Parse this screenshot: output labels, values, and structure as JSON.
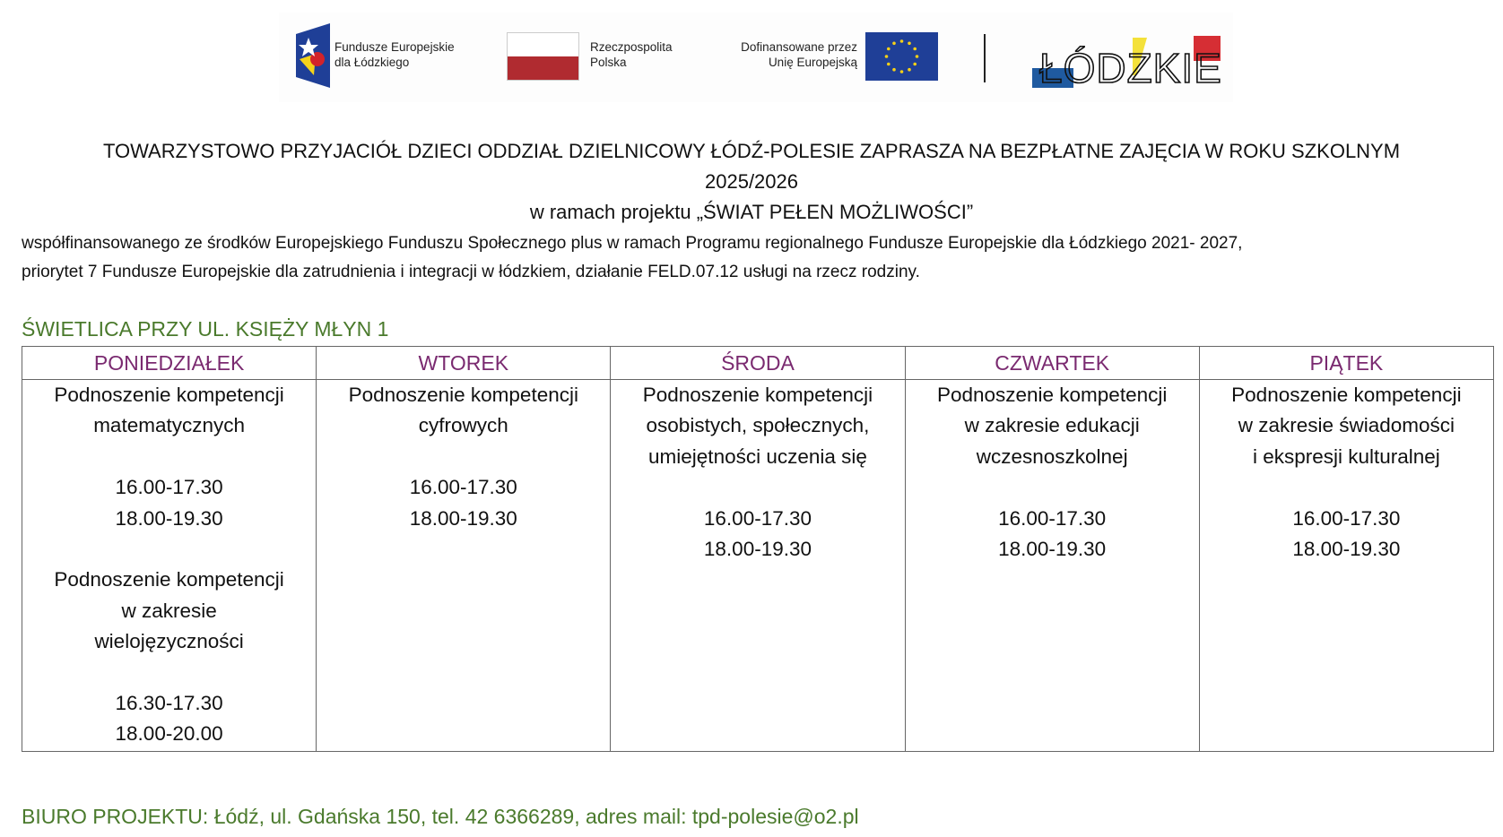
{
  "logos": {
    "fe_text": [
      "Fundusze Europejskie",
      "dla Łódzkiego"
    ],
    "pl_text": [
      "Rzeczpospolita",
      "Polska"
    ],
    "eu_text": [
      "Dofinansowane przez",
      "Unię Europejską"
    ],
    "lodzkie_text": "ŁÓDZKIE"
  },
  "header": {
    "title_line1": "TOWARZYSTOWO PRZYJACIÓŁ DZIECI ODDZIAŁ DZIELNICOWY ŁÓDŹ-POLESIE ZAPRASZA NA BEZPŁATNE ZAJĘCIA W ROKU SZKOLNYM",
    "title_line2": "2025/2026",
    "title_line3": "w ramach projektu „ŚWIAT PEŁEN MOŻLIWOŚCI”",
    "para_line1": "współfinansowanego ze środków Europejskiego Funduszu Społecznego plus w ramach Programu regionalnego Fundusze Europejskie dla Łódzkiego 2021- 2027,",
    "para_line2": "priorytet 7 Fundusze Europejskie dla zatrudnienia i integracji w łódzkiem, działanie FELD.07.12 usługi na rzecz rodziny."
  },
  "section_title": "ŚWIETLICA PRZY UL. KSIĘŻY MŁYN 1",
  "schedule": {
    "days": [
      "PONIEDZIAŁEK",
      "WTOREK",
      "ŚRODA",
      "CZWARTEK",
      "PIĄTEK"
    ],
    "cells": [
      [
        "Podnoszenie kompetencji",
        "matematycznych",
        "",
        "16.00-17.30",
        "18.00-19.30",
        "",
        "Podnoszenie kompetencji",
        "w zakresie",
        "wielojęzyczności",
        "",
        "16.30-17.30",
        "18.00-20.00"
      ],
      [
        "Podnoszenie kompetencji",
        "cyfrowych",
        "",
        "16.00-17.30",
        "18.00-19.30"
      ],
      [
        "Podnoszenie kompetencji",
        "osobistych, społecznych,",
        "umiejętności uczenia się",
        "",
        "16.00-17.30",
        "18.00-19.30"
      ],
      [
        "Podnoszenie kompetencji",
        "w zakresie edukacji",
        "wczesnoszkolnej",
        "",
        "16.00-17.30",
        "18.00-19.30"
      ],
      [
        "Podnoszenie kompetencji",
        "w zakresie świadomości",
        "i ekspresji kulturalnej",
        "",
        "16.00-17.30",
        "18.00-19.30"
      ]
    ]
  },
  "footer": "BIURO PROJEKTU: Łódź, ul. Gdańska 150, tel. 42 6366289, adres mail: tpd-polesie@o2.pl",
  "colors": {
    "green": "#4a7a2c",
    "purple": "#7a2a70",
    "eu_blue": "#1f3f97",
    "pl_red": "#b02b30"
  }
}
